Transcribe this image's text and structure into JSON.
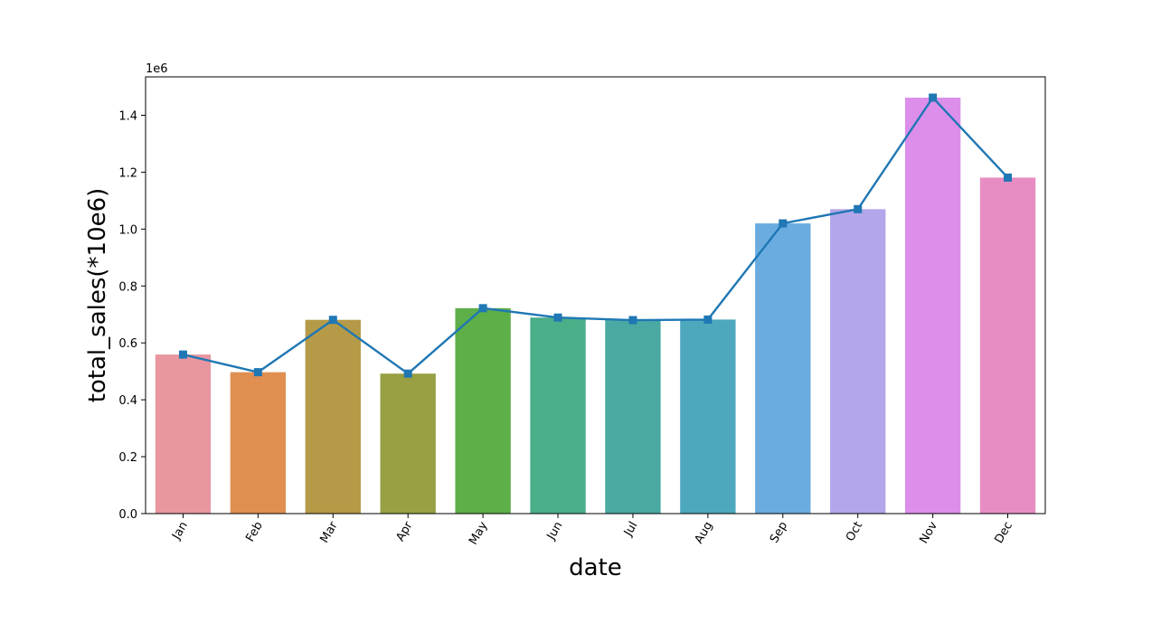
{
  "chart_data": {
    "type": "bar",
    "title": "",
    "xlabel": "date",
    "ylabel": "total_sales(*10e6)",
    "y_offset_label": "1e6",
    "categories": [
      "Jan",
      "Feb",
      "Mar",
      "Apr",
      "May",
      "Jun",
      "Jul",
      "Aug",
      "Sep",
      "Oct",
      "Nov",
      "Dec"
    ],
    "values": [
      559000,
      497000,
      681000,
      492000,
      722000,
      689000,
      680000,
      682000,
      1020000,
      1070000,
      1462000,
      1181000
    ],
    "line_values": [
      559000,
      497000,
      681000,
      492000,
      722000,
      689000,
      680000,
      682000,
      1020000,
      1070000,
      1462000,
      1181000
    ],
    "ylim": [
      0,
      1535000
    ],
    "yticks": [
      0,
      200000,
      400000,
      600000,
      800000,
      1000000,
      1200000,
      1400000
    ],
    "ytick_labels": [
      "0.0",
      "0.2",
      "0.4",
      "0.6",
      "0.8",
      "1.0",
      "1.2",
      "1.4"
    ],
    "grid": false,
    "legend": "none",
    "bar_colors": [
      "#e8969f",
      "#e08f51",
      "#b59a48",
      "#99a044",
      "#5eaf47",
      "#4aae89",
      "#4aa9a3",
      "#4ea8bd",
      "#6aace0",
      "#b4a6ea",
      "#dc8eeb",
      "#e88dc3"
    ],
    "line_color": "#1f77b4"
  }
}
